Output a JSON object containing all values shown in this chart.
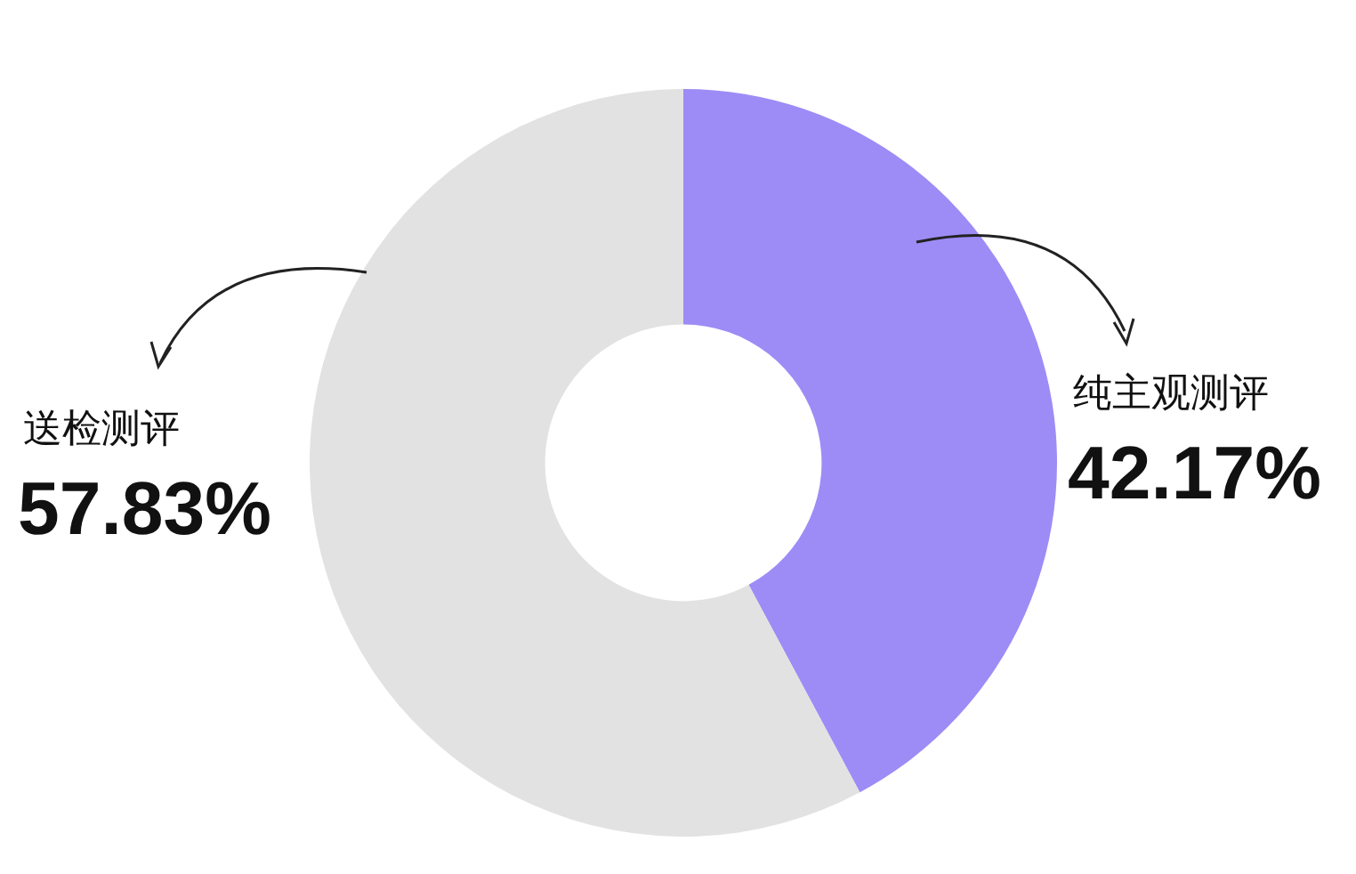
{
  "chart_data": {
    "type": "donut",
    "categories": [
      "纯主观测评",
      "送检测评"
    ],
    "values": [
      42.17,
      57.83
    ],
    "colors": [
      "#9d8cf6",
      "#e2e2e2"
    ],
    "value_labels": [
      "42.17%",
      "57.83%"
    ],
    "legend": false
  }
}
